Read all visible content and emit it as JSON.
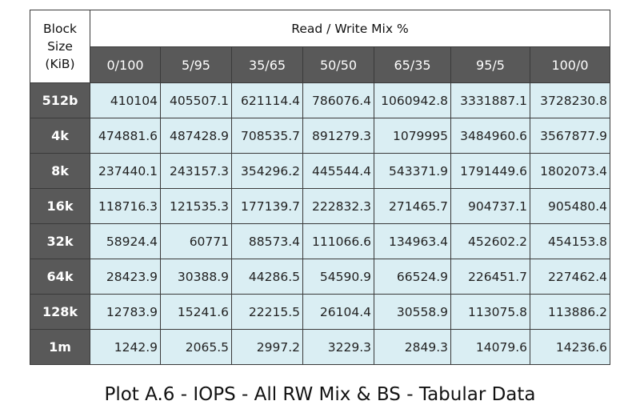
{
  "table": {
    "corner": "Block Size (KiB)",
    "group_header": "Read / Write Mix %",
    "columns": [
      "0/100",
      "5/95",
      "35/65",
      "50/50",
      "65/35",
      "95/5",
      "100/0"
    ],
    "rows": [
      {
        "label": "512b",
        "values": [
          410104,
          405507.1,
          621114.4,
          786076.4,
          1060942.8,
          3331887.1,
          3728230.8
        ]
      },
      {
        "label": "4k",
        "values": [
          474881.6,
          487428.9,
          708535.7,
          891279.3,
          1079995,
          3484960.6,
          3567877.9
        ]
      },
      {
        "label": "8k",
        "values": [
          237440.1,
          243157.3,
          354296.2,
          445544.4,
          543371.9,
          1791449.6,
          1802073.4
        ]
      },
      {
        "label": "16k",
        "values": [
          118716.3,
          121535.3,
          177139.7,
          222832.3,
          271465.7,
          904737.1,
          905480.4
        ]
      },
      {
        "label": "32k",
        "values": [
          58924.4,
          60771,
          88573.4,
          111066.6,
          134963.4,
          452602.2,
          454153.8
        ]
      },
      {
        "label": "64k",
        "values": [
          28423.9,
          30388.9,
          44286.5,
          54590.9,
          66524.9,
          226451.7,
          227462.4
        ]
      },
      {
        "label": "128k",
        "values": [
          12783.9,
          15241.6,
          22215.5,
          26104.4,
          30558.9,
          113075.8,
          113886.2
        ]
      },
      {
        "label": "1m",
        "values": [
          1242.9,
          2065.5,
          2997.2,
          3229.3,
          2849.3,
          14079.6,
          14236.6
        ]
      }
    ]
  },
  "caption": "Plot A.6 - IOPS - All RW Mix & BS - Tabular Data"
}
